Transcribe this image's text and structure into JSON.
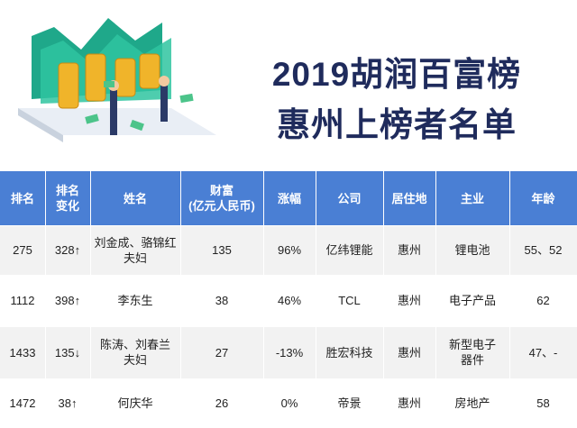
{
  "header": {
    "title": [
      "2019胡润百富榜",
      "惠州上榜者名单"
    ]
  },
  "table": {
    "columns": [
      "排名",
      [
        "排名",
        "变化"
      ],
      "姓名",
      [
        "财富",
        "(亿元人民币)"
      ],
      "涨幅",
      "公司",
      "居住地",
      "主业",
      "年龄"
    ],
    "rows": [
      [
        "275",
        "328↑",
        [
          "刘金成、骆锦红",
          "夫妇"
        ],
        "135",
        "96%",
        "亿纬锂能",
        "惠州",
        "锂电池",
        "55、52"
      ],
      [
        "1112",
        "398↑",
        "李东生",
        "38",
        "46%",
        "TCL",
        "惠州",
        "电子产品",
        "62"
      ],
      [
        "1433",
        "135↓",
        [
          "陈涛、刘春兰",
          "夫妇"
        ],
        "27",
        "-13%",
        "胜宏科技",
        "惠州",
        [
          "新型电子",
          "器件"
        ],
        "47、-"
      ],
      [
        "1472",
        "38↑",
        "何庆华",
        "26",
        "0%",
        "帝景",
        "惠州",
        "房地产",
        "58"
      ]
    ]
  }
}
